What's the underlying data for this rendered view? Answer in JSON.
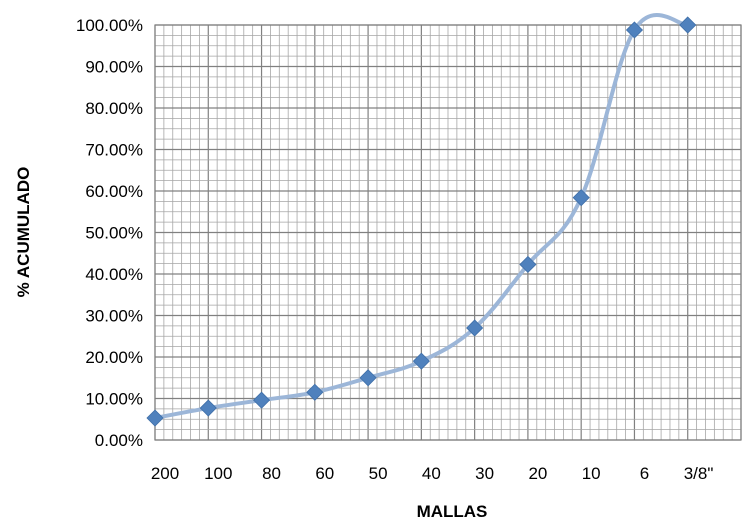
{
  "chart_data": {
    "type": "line",
    "title": "",
    "xlabel": "MALLAS",
    "ylabel": "% ACUMULADO",
    "categories": [
      "200",
      "100",
      "80",
      "60",
      "50",
      "40",
      "30",
      "20",
      "10",
      "6",
      "3/8\""
    ],
    "x": [
      0,
      1,
      2,
      3,
      4,
      5,
      6,
      7,
      8,
      9,
      10
    ],
    "y_tick_labels": [
      "0.00%",
      "10.00%",
      "20.00%",
      "30.00%",
      "40.00%",
      "50.00%",
      "60.00%",
      "70.00%",
      "80.00%",
      "90.00%",
      "100.00%"
    ],
    "ylim": [
      0,
      100
    ],
    "grid": true,
    "legend": "none",
    "series": [
      {
        "x": [
          0,
          1,
          2,
          3,
          4,
          5,
          6,
          7,
          8,
          9,
          10
        ],
        "values": [
          5.3,
          7.7,
          9.6,
          11.5,
          15.0,
          19.0,
          27.0,
          42.3,
          58.4,
          98.8,
          100.0
        ],
        "color": "#4f81bd",
        "line_color": "#9cb6d8"
      }
    ]
  }
}
